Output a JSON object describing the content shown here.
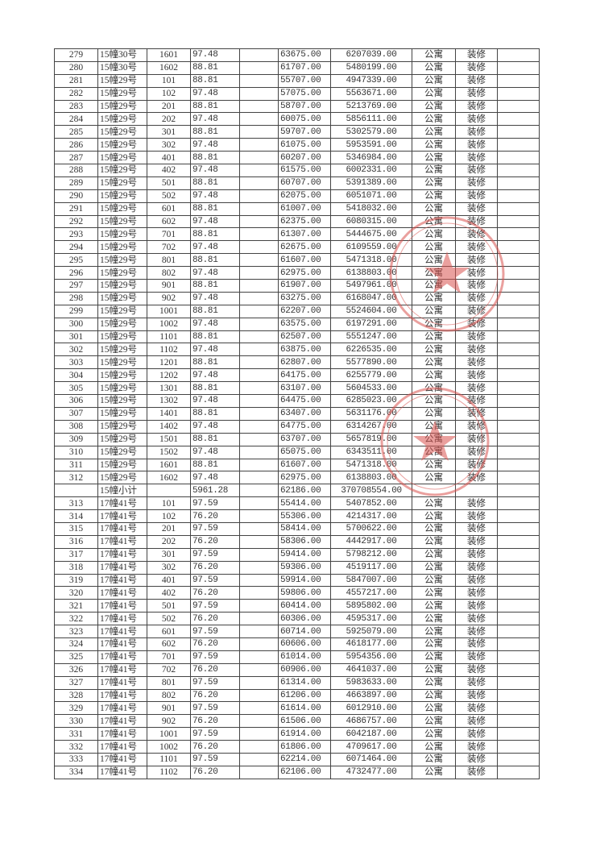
{
  "table": {
    "rows": [
      [
        "279",
        "15幢30号",
        "1601",
        "97.48",
        "",
        "63675.00",
        "6207039.00",
        "公寓",
        "装修",
        ""
      ],
      [
        "280",
        "15幢30号",
        "1602",
        "88.81",
        "",
        "61707.00",
        "5480199.00",
        "公寓",
        "装修",
        ""
      ],
      [
        "281",
        "15幢29号",
        "101",
        "88.81",
        "",
        "55707.00",
        "4947339.00",
        "公寓",
        "装修",
        ""
      ],
      [
        "282",
        "15幢29号",
        "102",
        "97.48",
        "",
        "57075.00",
        "5563671.00",
        "公寓",
        "装修",
        ""
      ],
      [
        "283",
        "15幢29号",
        "201",
        "88.81",
        "",
        "58707.00",
        "5213769.00",
        "公寓",
        "装修",
        ""
      ],
      [
        "284",
        "15幢29号",
        "202",
        "97.48",
        "",
        "60075.00",
        "5856111.00",
        "公寓",
        "装修",
        ""
      ],
      [
        "285",
        "15幢29号",
        "301",
        "88.81",
        "",
        "59707.00",
        "5302579.00",
        "公寓",
        "装修",
        ""
      ],
      [
        "286",
        "15幢29号",
        "302",
        "97.48",
        "",
        "61075.00",
        "5953591.00",
        "公寓",
        "装修",
        ""
      ],
      [
        "287",
        "15幢29号",
        "401",
        "88.81",
        "",
        "60207.00",
        "5346984.00",
        "公寓",
        "装修",
        ""
      ],
      [
        "288",
        "15幢29号",
        "402",
        "97.48",
        "",
        "61575.00",
        "6002331.00",
        "公寓",
        "装修",
        ""
      ],
      [
        "289",
        "15幢29号",
        "501",
        "88.81",
        "",
        "60707.00",
        "5391389.00",
        "公寓",
        "装修",
        ""
      ],
      [
        "290",
        "15幢29号",
        "502",
        "97.48",
        "",
        "62075.00",
        "6051071.00",
        "公寓",
        "装修",
        ""
      ],
      [
        "291",
        "15幢29号",
        "601",
        "88.81",
        "",
        "61007.00",
        "5418032.00",
        "公寓",
        "装修",
        ""
      ],
      [
        "292",
        "15幢29号",
        "602",
        "97.48",
        "",
        "62375.00",
        "6080315.00",
        "公寓",
        "装修",
        ""
      ],
      [
        "293",
        "15幢29号",
        "701",
        "88.81",
        "",
        "61307.00",
        "5444675.00",
        "公寓",
        "装修",
        ""
      ],
      [
        "294",
        "15幢29号",
        "702",
        "97.48",
        "",
        "62675.00",
        "6109559.00",
        "公寓",
        "装修",
        ""
      ],
      [
        "295",
        "15幢29号",
        "801",
        "88.81",
        "",
        "61607.00",
        "5471318.00",
        "公寓",
        "装修",
        ""
      ],
      [
        "296",
        "15幢29号",
        "802",
        "97.48",
        "",
        "62975.00",
        "6138803.00",
        "公寓",
        "装修",
        ""
      ],
      [
        "297",
        "15幢29号",
        "901",
        "88.81",
        "",
        "61907.00",
        "5497961.00",
        "公寓",
        "装修",
        ""
      ],
      [
        "298",
        "15幢29号",
        "902",
        "97.48",
        "",
        "63275.00",
        "6168047.00",
        "公寓",
        "装修",
        ""
      ],
      [
        "299",
        "15幢29号",
        "1001",
        "88.81",
        "",
        "62207.00",
        "5524604.00",
        "公寓",
        "装修",
        ""
      ],
      [
        "300",
        "15幢29号",
        "1002",
        "97.48",
        "",
        "63575.00",
        "6197291.00",
        "公寓",
        "装修",
        ""
      ],
      [
        "301",
        "15幢29号",
        "1101",
        "88.81",
        "",
        "62507.00",
        "5551247.00",
        "公寓",
        "装修",
        ""
      ],
      [
        "302",
        "15幢29号",
        "1102",
        "97.48",
        "",
        "63875.00",
        "6226535.00",
        "公寓",
        "装修",
        ""
      ],
      [
        "303",
        "15幢29号",
        "1201",
        "88.81",
        "",
        "62807.00",
        "5577890.00",
        "公寓",
        "装修",
        ""
      ],
      [
        "304",
        "15幢29号",
        "1202",
        "97.48",
        "",
        "64175.00",
        "6255779.00",
        "公寓",
        "装修",
        ""
      ],
      [
        "305",
        "15幢29号",
        "1301",
        "88.81",
        "",
        "63107.00",
        "5604533.00",
        "公寓",
        "装修",
        ""
      ],
      [
        "306",
        "15幢29号",
        "1302",
        "97.48",
        "",
        "64475.00",
        "6285023.00",
        "公寓",
        "装修",
        ""
      ],
      [
        "307",
        "15幢29号",
        "1401",
        "88.81",
        "",
        "63407.00",
        "5631176.00",
        "公寓",
        "装修",
        ""
      ],
      [
        "308",
        "15幢29号",
        "1402",
        "97.48",
        "",
        "64775.00",
        "6314267.00",
        "公寓",
        "装修",
        ""
      ],
      [
        "309",
        "15幢29号",
        "1501",
        "88.81",
        "",
        "63707.00",
        "5657819.00",
        "公寓",
        "装修",
        ""
      ],
      [
        "310",
        "15幢29号",
        "1502",
        "97.48",
        "",
        "65075.00",
        "6343511.00",
        "公寓",
        "装修",
        ""
      ],
      [
        "311",
        "15幢29号",
        "1601",
        "88.81",
        "",
        "61607.00",
        "5471318.00",
        "公寓",
        "装修",
        ""
      ],
      [
        "312",
        "15幢29号",
        "1602",
        "97.48",
        "",
        "62975.00",
        "6138803.00",
        "公寓",
        "装修",
        ""
      ],
      [
        "",
        "15幢小计",
        "",
        "5961.28",
        "",
        "62186.00",
        "370708554.00",
        "",
        "",
        ""
      ],
      [
        "313",
        "17幢41号",
        "101",
        "97.59",
        "",
        "55414.00",
        "5407852.00",
        "公寓",
        "装修",
        ""
      ],
      [
        "314",
        "17幢41号",
        "102",
        "76.20",
        "",
        "55306.00",
        "4214317.00",
        "公寓",
        "装修",
        ""
      ],
      [
        "315",
        "17幢41号",
        "201",
        "97.59",
        "",
        "58414.00",
        "5700622.00",
        "公寓",
        "装修",
        ""
      ],
      [
        "316",
        "17幢41号",
        "202",
        "76.20",
        "",
        "58306.00",
        "4442917.00",
        "公寓",
        "装修",
        ""
      ],
      [
        "317",
        "17幢41号",
        "301",
        "97.59",
        "",
        "59414.00",
        "5798212.00",
        "公寓",
        "装修",
        ""
      ],
      [
        "318",
        "17幢41号",
        "302",
        "76.20",
        "",
        "59306.00",
        "4519117.00",
        "公寓",
        "装修",
        ""
      ],
      [
        "319",
        "17幢41号",
        "401",
        "97.59",
        "",
        "59914.00",
        "5847007.00",
        "公寓",
        "装修",
        ""
      ],
      [
        "320",
        "17幢41号",
        "402",
        "76.20",
        "",
        "59806.00",
        "4557217.00",
        "公寓",
        "装修",
        ""
      ],
      [
        "321",
        "17幢41号",
        "501",
        "97.59",
        "",
        "60414.00",
        "5895802.00",
        "公寓",
        "装修",
        ""
      ],
      [
        "322",
        "17幢41号",
        "502",
        "76.20",
        "",
        "60306.00",
        "4595317.00",
        "公寓",
        "装修",
        ""
      ],
      [
        "323",
        "17幢41号",
        "601",
        "97.59",
        "",
        "60714.00",
        "5925079.00",
        "公寓",
        "装修",
        ""
      ],
      [
        "324",
        "17幢41号",
        "602",
        "76.20",
        "",
        "60606.00",
        "4618177.00",
        "公寓",
        "装修",
        ""
      ],
      [
        "325",
        "17幢41号",
        "701",
        "97.59",
        "",
        "61014.00",
        "5954356.00",
        "公寓",
        "装修",
        ""
      ],
      [
        "326",
        "17幢41号",
        "702",
        "76.20",
        "",
        "60906.00",
        "4641037.00",
        "公寓",
        "装修",
        ""
      ],
      [
        "327",
        "17幢41号",
        "801",
        "97.59",
        "",
        "61314.00",
        "5983633.00",
        "公寓",
        "装修",
        ""
      ],
      [
        "328",
        "17幢41号",
        "802",
        "76.20",
        "",
        "61206.00",
        "4663897.00",
        "公寓",
        "装修",
        ""
      ],
      [
        "329",
        "17幢41号",
        "901",
        "97.59",
        "",
        "61614.00",
        "6012910.00",
        "公寓",
        "装修",
        ""
      ],
      [
        "330",
        "17幢41号",
        "902",
        "76.20",
        "",
        "61506.00",
        "4686757.00",
        "公寓",
        "装修",
        ""
      ],
      [
        "331",
        "17幢41号",
        "1001",
        "97.59",
        "",
        "61914.00",
        "6042187.00",
        "公寓",
        "装修",
        ""
      ],
      [
        "332",
        "17幢41号",
        "1002",
        "76.20",
        "",
        "61806.00",
        "4709617.00",
        "公寓",
        "装修",
        ""
      ],
      [
        "333",
        "17幢41号",
        "1101",
        "97.59",
        "",
        "62214.00",
        "6071464.00",
        "公寓",
        "装修",
        ""
      ],
      [
        "334",
        "17幢41号",
        "1102",
        "76.20",
        "",
        "62106.00",
        "4732477.00",
        "公寓",
        "装修",
        ""
      ]
    ]
  },
  "colors": {
    "seal": "#d9534f",
    "ink": "#333333"
  }
}
